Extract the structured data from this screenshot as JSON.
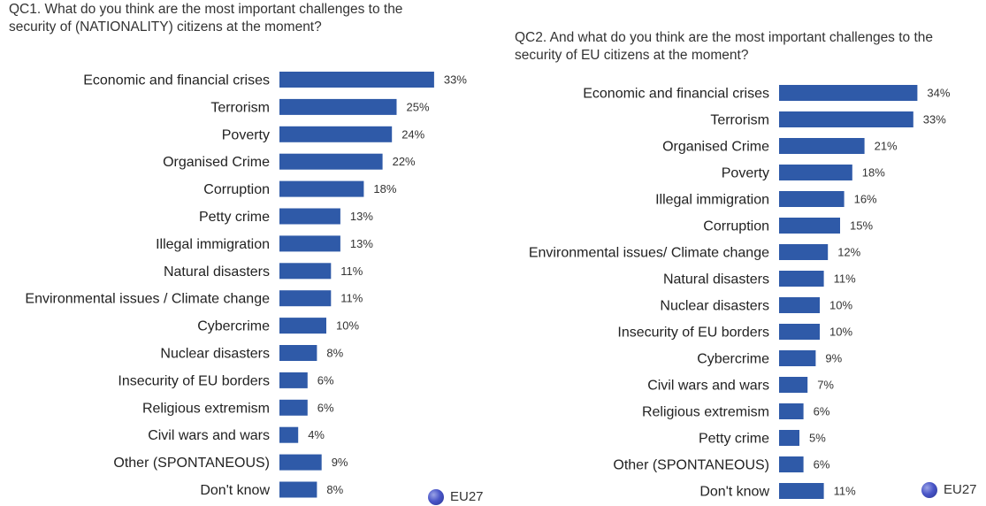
{
  "bar_color": "#2f5aa8",
  "chart_data": [
    {
      "type": "bar",
      "orientation": "horizontal",
      "title": "QC1. What do you think are the most important challenges to the\nsecurity of (NATIONALITY) citizens at the moment?",
      "categories": [
        "Economic and financial crises",
        "Terrorism",
        "Poverty",
        "Organised Crime",
        "Corruption",
        "Petty crime",
        "Illegal immigration",
        "Natural disasters",
        "Environmental issues / Climate change",
        "Cybercrime",
        "Nuclear disasters",
        "Insecurity of EU borders",
        "Religious extremism",
        "Civil wars and wars",
        "Other (SPONTANEOUS)",
        "Don't know"
      ],
      "values": [
        33,
        25,
        24,
        22,
        18,
        13,
        13,
        11,
        11,
        10,
        8,
        6,
        6,
        4,
        9,
        8
      ],
      "value_labels": [
        "33%",
        "25%",
        "24%",
        "22%",
        "18%",
        "13%",
        "13%",
        "11%",
        "11%",
        "10%",
        "8%",
        "6%",
        "6%",
        "4%",
        "9%",
        "8%"
      ],
      "series": [
        {
          "name": "EU27",
          "values": [
            33,
            25,
            24,
            22,
            18,
            13,
            13,
            11,
            11,
            10,
            8,
            6,
            6,
            4,
            9,
            8
          ]
        }
      ],
      "legend": "bottom-right",
      "grid": false
    },
    {
      "type": "bar",
      "orientation": "horizontal",
      "title": "QC2. And what do you think are the most important challenges to the\nsecurity of EU citizens at the moment?",
      "categories": [
        "Economic and financial crises",
        "Terrorism",
        "Organised Crime",
        "Poverty",
        "Illegal immigration",
        "Corruption",
        "Environmental issues/ Climate change",
        "Natural disasters",
        "Nuclear disasters",
        "Insecurity of EU borders",
        "Cybercrime",
        "Civil wars and wars",
        "Religious extremism",
        "Petty crime",
        "Other (SPONTANEOUS)",
        "Don't know"
      ],
      "values": [
        34,
        33,
        21,
        18,
        16,
        15,
        12,
        11,
        10,
        10,
        9,
        7,
        6,
        5,
        6,
        11
      ],
      "value_labels": [
        "34%",
        "33%",
        "21%",
        "18%",
        "16%",
        "15%",
        "12%",
        "11%",
        "10%",
        "10%",
        "9%",
        "7%",
        "6%",
        "5%",
        "6%",
        "11%"
      ],
      "series": [
        {
          "name": "EU27",
          "values": [
            34,
            33,
            21,
            18,
            16,
            15,
            12,
            11,
            10,
            10,
            9,
            7,
            6,
            5,
            6,
            11
          ]
        }
      ],
      "legend": "bottom-right",
      "grid": false
    }
  ]
}
